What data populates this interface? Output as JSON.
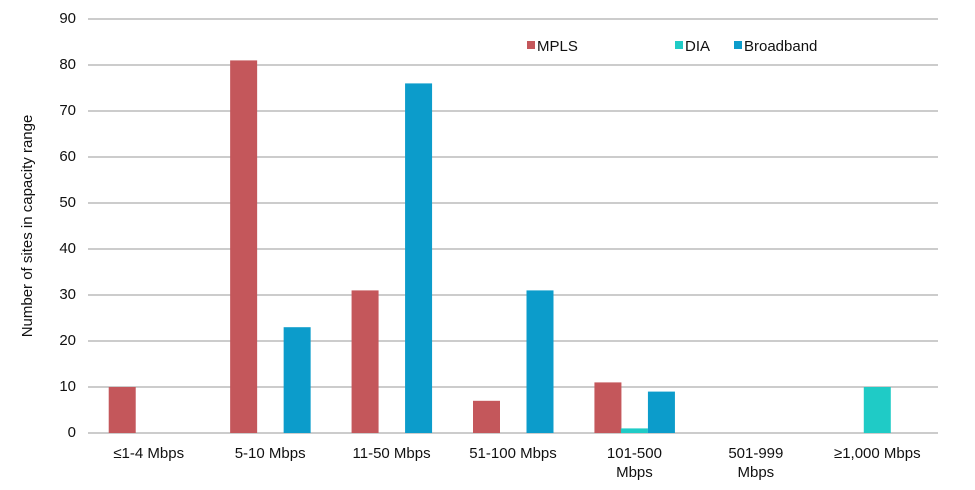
{
  "chart_data": {
    "type": "bar",
    "y_label": "Number of sites in capacity range",
    "categories": [
      "≤1-4 Mbps",
      "5-10 Mbps",
      "11-50 Mbps",
      "51-100 Mbps",
      "101-500\nMbps",
      "501-999\nMbps",
      "≥1,000 Mbps"
    ],
    "series": [
      {
        "name": "MPLS",
        "color": "#c4575b",
        "values": [
          10,
          81,
          31,
          7,
          11,
          0,
          0
        ]
      },
      {
        "name": "DIA",
        "color": "#1fcbc6",
        "values": [
          0,
          0,
          0,
          0,
          1,
          0,
          10
        ]
      },
      {
        "name": "Broadband",
        "color": "#0c9ccb",
        "values": [
          0,
          23,
          76,
          31,
          9,
          0,
          0
        ]
      }
    ],
    "ylim": [
      0,
      90
    ],
    "yticks": [
      0,
      10,
      20,
      30,
      40,
      50,
      60,
      70,
      80,
      90
    ],
    "grid": true
  }
}
